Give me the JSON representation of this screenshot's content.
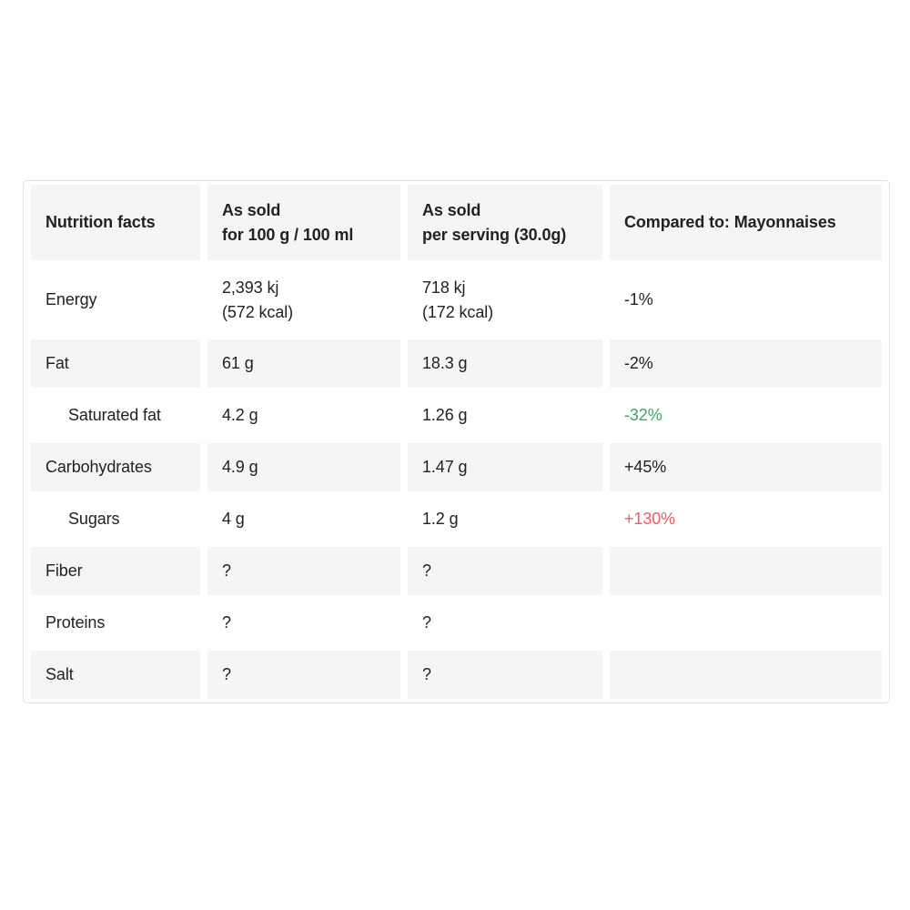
{
  "colors": {
    "page_background": "#ffffff",
    "stripe_background": "#f5f5f5",
    "border": "#e2e2e2",
    "text": "#25211e",
    "good_green": "#3da46c",
    "bad_red": "#f2566a"
  },
  "table": {
    "header": {
      "col1": "Nutrition facts",
      "col2_line1": "As sold",
      "col2_line2": "for 100 g / 100 ml",
      "col3_line1": "As sold",
      "col3_line2": "per serving (30.0g)",
      "col4": "Compared to: Mayonnaises"
    },
    "rows": [
      {
        "label": "Energy",
        "v100_line1": "2,393 kj",
        "v100_line2": "(572 kcal)",
        "vserv_line1": "718 kj",
        "vserv_line2": "(172 kcal)",
        "compared": "-1%",
        "tone": "neutral"
      },
      {
        "label": "Fat",
        "v100": "61 g",
        "vserv": "18.3 g",
        "compared": "-2%",
        "tone": "neutral"
      },
      {
        "label": "Saturated fat",
        "v100": "4.2 g",
        "vserv": "1.26 g",
        "compared": "-32%",
        "tone": "good"
      },
      {
        "label": "Carbohydrates",
        "v100": "4.9 g",
        "vserv": "1.47 g",
        "compared": "+45%",
        "tone": "neutral"
      },
      {
        "label": "Sugars",
        "v100": "4 g",
        "vserv": "1.2 g",
        "compared": "+130%",
        "tone": "bad"
      },
      {
        "label": "Fiber",
        "v100": "?",
        "vserv": "?",
        "compared": "",
        "tone": "neutral"
      },
      {
        "label": "Proteins",
        "v100": "?",
        "vserv": "?",
        "compared": "",
        "tone": "neutral"
      },
      {
        "label": "Salt",
        "v100": "?",
        "vserv": "?",
        "compared": "",
        "tone": "neutral"
      }
    ]
  }
}
